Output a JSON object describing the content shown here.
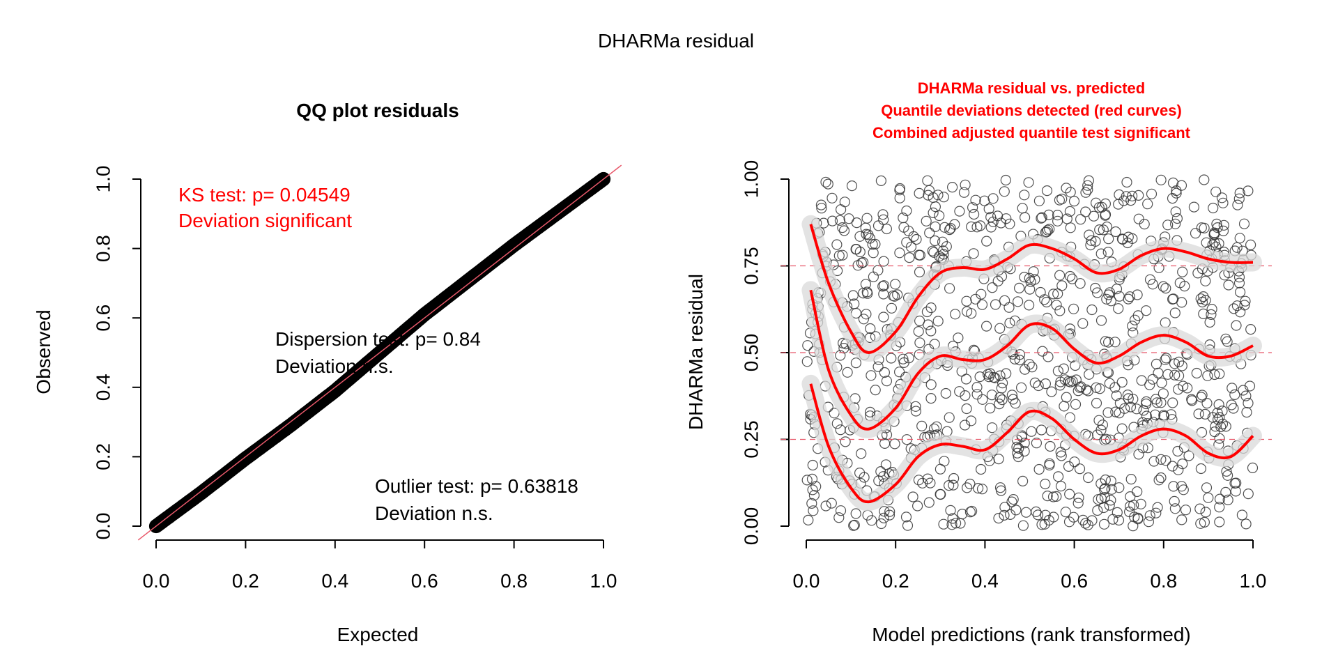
{
  "page": {
    "title": "DHARMa residual"
  },
  "qq_annotations": {
    "ks": [
      "KS test: p= 0.04549",
      "Deviation  significant"
    ],
    "dispersion": [
      "Dispersion test: p= 0.84",
      "Deviation  n.s."
    ],
    "outlier": [
      "Outlier test: p= 0.63818",
      "Deviation  n.s."
    ]
  },
  "colors": {
    "significant": "#ff0000",
    "points": "#000000",
    "band": "#d9d9d9",
    "identity_line": "#e8586a"
  },
  "chart_data": [
    {
      "type": "scatter",
      "title": "QQ plot residuals",
      "xlabel": "Expected",
      "ylabel": "Observed",
      "xlim": [
        0,
        1
      ],
      "ylim": [
        0,
        1
      ],
      "xticks": [
        "0.0",
        "0.2",
        "0.4",
        "0.6",
        "0.8",
        "1.0"
      ],
      "yticks": [
        "0.0",
        "0.2",
        "0.4",
        "0.6",
        "0.8",
        "1.0"
      ],
      "grid": false,
      "series": [
        {
          "expected": [
            0,
            0.1,
            0.2,
            0.3,
            0.4,
            0.5,
            0.6,
            0.7,
            0.8,
            0.9,
            1.0
          ],
          "observed": [
            0,
            0.095,
            0.195,
            0.29,
            0.39,
            0.5,
            0.61,
            0.71,
            0.81,
            0.905,
            1.0
          ]
        }
      ],
      "reference_line": "identity"
    },
    {
      "type": "scatter",
      "title_lines": [
        "DHARMa residual vs. predicted",
        "Quantile deviations detected (red curves)",
        "Combined adjusted quantile test significant"
      ],
      "xlabel": "Model predictions (rank transformed)",
      "ylabel": "DHARMa residual",
      "xlim": [
        0,
        1
      ],
      "ylim": [
        0,
        1
      ],
      "xticks": [
        "0.0",
        "0.2",
        "0.4",
        "0.6",
        "0.8",
        "1.0"
      ],
      "yticks": [
        "0.00",
        "0.25",
        "0.50",
        "0.75",
        "1.00"
      ],
      "reference_lines": [
        0.25,
        0.5,
        0.75
      ],
      "grid": false,
      "quantile_curves": [
        {
          "quantile": 0.75,
          "x": [
            0.01,
            0.05,
            0.1,
            0.14,
            0.2,
            0.25,
            0.3,
            0.35,
            0.4,
            0.45,
            0.5,
            0.55,
            0.6,
            0.65,
            0.7,
            0.75,
            0.8,
            0.85,
            0.9,
            0.95,
            1.0
          ],
          "y": [
            0.87,
            0.7,
            0.56,
            0.5,
            0.56,
            0.66,
            0.73,
            0.745,
            0.74,
            0.77,
            0.81,
            0.8,
            0.77,
            0.73,
            0.74,
            0.78,
            0.8,
            0.79,
            0.77,
            0.76,
            0.76
          ]
        },
        {
          "quantile": 0.5,
          "x": [
            0.01,
            0.05,
            0.1,
            0.14,
            0.2,
            0.25,
            0.3,
            0.35,
            0.4,
            0.45,
            0.5,
            0.55,
            0.6,
            0.65,
            0.7,
            0.75,
            0.8,
            0.85,
            0.9,
            0.95,
            1.0
          ],
          "y": [
            0.68,
            0.45,
            0.32,
            0.28,
            0.34,
            0.44,
            0.49,
            0.48,
            0.48,
            0.52,
            0.58,
            0.57,
            0.51,
            0.47,
            0.49,
            0.53,
            0.55,
            0.53,
            0.49,
            0.49,
            0.52
          ]
        },
        {
          "quantile": 0.25,
          "x": [
            0.01,
            0.05,
            0.1,
            0.14,
            0.2,
            0.25,
            0.3,
            0.35,
            0.4,
            0.45,
            0.5,
            0.55,
            0.6,
            0.65,
            0.7,
            0.75,
            0.8,
            0.85,
            0.9,
            0.95,
            1.0
          ],
          "y": [
            0.41,
            0.23,
            0.11,
            0.07,
            0.12,
            0.2,
            0.235,
            0.23,
            0.22,
            0.27,
            0.33,
            0.31,
            0.25,
            0.21,
            0.22,
            0.26,
            0.28,
            0.26,
            0.21,
            0.2,
            0.26
          ]
        }
      ]
    }
  ]
}
